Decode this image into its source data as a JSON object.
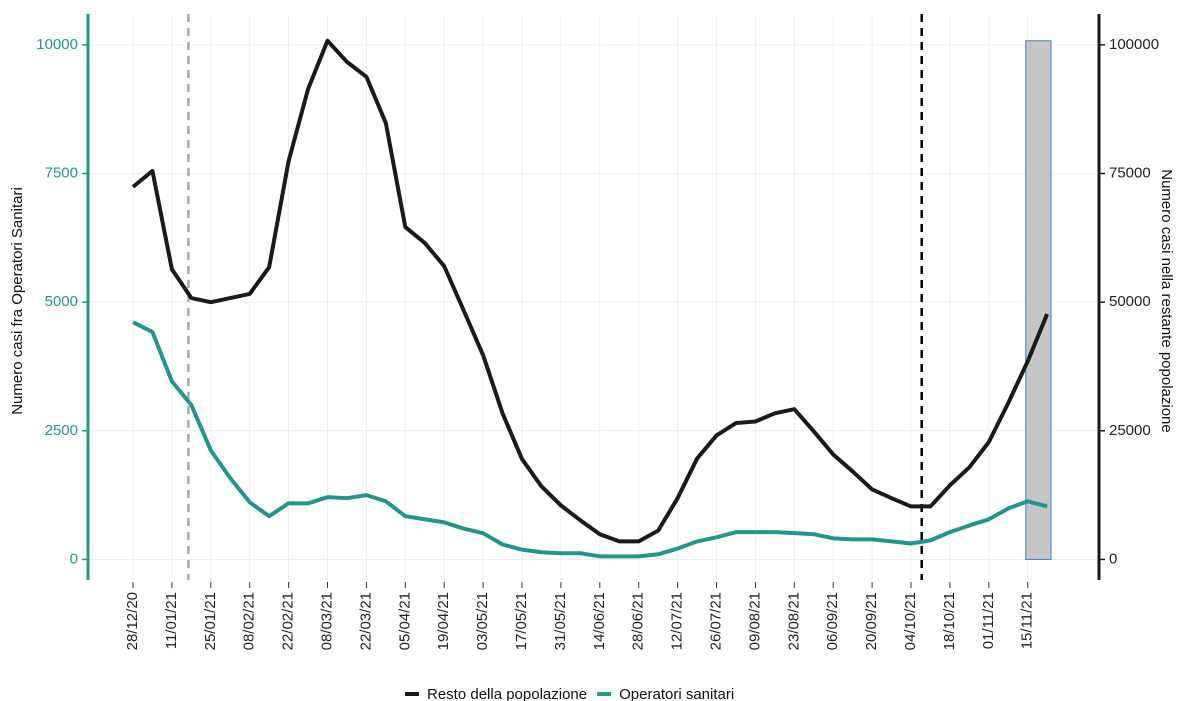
{
  "chart_data": {
    "type": "line",
    "y_label": "Numero casi fra Operatori Sanitari",
    "y2_label": "Numero casi nella restante popolazione",
    "categories": [
      "28/12/20",
      null,
      "11/01/21",
      null,
      "25/01/21",
      null,
      "08/02/21",
      null,
      "22/02/21",
      null,
      "08/03/21",
      null,
      "22/03/21",
      null,
      "05/04/21",
      null,
      "19/04/21",
      null,
      "03/05/21",
      null,
      "17/05/21",
      null,
      "31/05/21",
      null,
      "14/06/21",
      null,
      "28/06/21",
      null,
      "12/07/21",
      null,
      "26/07/21",
      null,
      "09/08/21",
      null,
      "23/08/21",
      null,
      "06/09/21",
      null,
      "20/09/21",
      null,
      "04/10/21",
      null,
      "18/10/21",
      null,
      "01/11/21",
      null,
      "15/11/21",
      null
    ],
    "series": [
      {
        "name": "Resto della popolazione",
        "color": "#1a1a1a",
        "axis": "y2",
        "values": [
          72400,
          75500,
          56400,
          50800,
          50000,
          50800,
          51600,
          56800,
          77400,
          91400,
          100800,
          96700,
          93800,
          84800,
          64600,
          61500,
          57000,
          48400,
          39700,
          28400,
          19500,
          14200,
          10500,
          7600,
          4900,
          3500,
          3500,
          5600,
          11900,
          19600,
          24100,
          26500,
          26800,
          28400,
          29200,
          24900,
          20400,
          17100,
          13600,
          11900,
          10300,
          10300,
          14400,
          17900,
          22800,
          30400,
          38500,
          47700
        ]
      },
      {
        "name": "Operatori sanitari",
        "color": "#21968c",
        "values": [
          4610,
          4420,
          3460,
          3000,
          2120,
          1580,
          1110,
          840,
          1090,
          1090,
          1210,
          1190,
          1250,
          1130,
          840,
          780,
          720,
          600,
          510,
          290,
          190,
          140,
          120,
          120,
          60,
          60,
          60,
          100,
          210,
          350,
          430,
          530,
          530,
          530,
          510,
          490,
          410,
          390,
          390,
          350,
          310,
          370,
          530,
          660,
          780,
          990,
          1130,
          1030
        ]
      }
    ],
    "ylim": [
      -400,
      10600
    ],
    "yticks": [
      0,
      2500,
      5000,
      7500,
      10000
    ],
    "y2lim": [
      -4000,
      106000
    ],
    "y2ticks": [
      0,
      25000,
      50000,
      75000,
      100000
    ],
    "vlines": [
      {
        "x": 2.85,
        "color": "#aaaaaa"
      },
      {
        "x": 40.55,
        "color": "#000000"
      }
    ],
    "highlight": {
      "x": [
        45.9,
        47.2
      ],
      "y": [
        0,
        10080
      ],
      "fill": "#c6c6c6",
      "stroke": "#3a7fc9"
    },
    "grid": true,
    "legend": "bottom"
  }
}
